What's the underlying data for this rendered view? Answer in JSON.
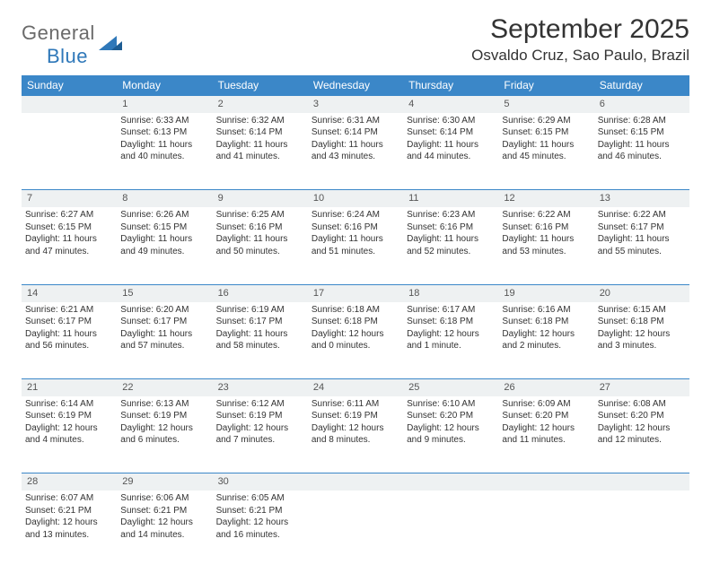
{
  "logo": {
    "top": "General",
    "bottom": "Blue"
  },
  "title": "September 2025",
  "location": "Osvaldo Cruz, Sao Paulo, Brazil",
  "colors": {
    "header_bg": "#3b87c8",
    "header_text": "#ffffff",
    "daynum_bg": "#eef1f2",
    "daynum_border": "#3b87c8",
    "logo_gray": "#6a6a6a",
    "logo_blue": "#2f78b9",
    "body_text": "#333333",
    "page_bg": "#ffffff"
  },
  "weekdays": [
    "Sunday",
    "Monday",
    "Tuesday",
    "Wednesday",
    "Thursday",
    "Friday",
    "Saturday"
  ],
  "weeks": [
    {
      "nums": [
        "",
        "1",
        "2",
        "3",
        "4",
        "5",
        "6"
      ],
      "cells": [
        [],
        [
          "Sunrise: 6:33 AM",
          "Sunset: 6:13 PM",
          "Daylight: 11 hours",
          "and 40 minutes."
        ],
        [
          "Sunrise: 6:32 AM",
          "Sunset: 6:14 PM",
          "Daylight: 11 hours",
          "and 41 minutes."
        ],
        [
          "Sunrise: 6:31 AM",
          "Sunset: 6:14 PM",
          "Daylight: 11 hours",
          "and 43 minutes."
        ],
        [
          "Sunrise: 6:30 AM",
          "Sunset: 6:14 PM",
          "Daylight: 11 hours",
          "and 44 minutes."
        ],
        [
          "Sunrise: 6:29 AM",
          "Sunset: 6:15 PM",
          "Daylight: 11 hours",
          "and 45 minutes."
        ],
        [
          "Sunrise: 6:28 AM",
          "Sunset: 6:15 PM",
          "Daylight: 11 hours",
          "and 46 minutes."
        ]
      ]
    },
    {
      "nums": [
        "7",
        "8",
        "9",
        "10",
        "11",
        "12",
        "13"
      ],
      "cells": [
        [
          "Sunrise: 6:27 AM",
          "Sunset: 6:15 PM",
          "Daylight: 11 hours",
          "and 47 minutes."
        ],
        [
          "Sunrise: 6:26 AM",
          "Sunset: 6:15 PM",
          "Daylight: 11 hours",
          "and 49 minutes."
        ],
        [
          "Sunrise: 6:25 AM",
          "Sunset: 6:16 PM",
          "Daylight: 11 hours",
          "and 50 minutes."
        ],
        [
          "Sunrise: 6:24 AM",
          "Sunset: 6:16 PM",
          "Daylight: 11 hours",
          "and 51 minutes."
        ],
        [
          "Sunrise: 6:23 AM",
          "Sunset: 6:16 PM",
          "Daylight: 11 hours",
          "and 52 minutes."
        ],
        [
          "Sunrise: 6:22 AM",
          "Sunset: 6:16 PM",
          "Daylight: 11 hours",
          "and 53 minutes."
        ],
        [
          "Sunrise: 6:22 AM",
          "Sunset: 6:17 PM",
          "Daylight: 11 hours",
          "and 55 minutes."
        ]
      ]
    },
    {
      "nums": [
        "14",
        "15",
        "16",
        "17",
        "18",
        "19",
        "20"
      ],
      "cells": [
        [
          "Sunrise: 6:21 AM",
          "Sunset: 6:17 PM",
          "Daylight: 11 hours",
          "and 56 minutes."
        ],
        [
          "Sunrise: 6:20 AM",
          "Sunset: 6:17 PM",
          "Daylight: 11 hours",
          "and 57 minutes."
        ],
        [
          "Sunrise: 6:19 AM",
          "Sunset: 6:17 PM",
          "Daylight: 11 hours",
          "and 58 minutes."
        ],
        [
          "Sunrise: 6:18 AM",
          "Sunset: 6:18 PM",
          "Daylight: 12 hours",
          "and 0 minutes."
        ],
        [
          "Sunrise: 6:17 AM",
          "Sunset: 6:18 PM",
          "Daylight: 12 hours",
          "and 1 minute."
        ],
        [
          "Sunrise: 6:16 AM",
          "Sunset: 6:18 PM",
          "Daylight: 12 hours",
          "and 2 minutes."
        ],
        [
          "Sunrise: 6:15 AM",
          "Sunset: 6:18 PM",
          "Daylight: 12 hours",
          "and 3 minutes."
        ]
      ]
    },
    {
      "nums": [
        "21",
        "22",
        "23",
        "24",
        "25",
        "26",
        "27"
      ],
      "cells": [
        [
          "Sunrise: 6:14 AM",
          "Sunset: 6:19 PM",
          "Daylight: 12 hours",
          "and 4 minutes."
        ],
        [
          "Sunrise: 6:13 AM",
          "Sunset: 6:19 PM",
          "Daylight: 12 hours",
          "and 6 minutes."
        ],
        [
          "Sunrise: 6:12 AM",
          "Sunset: 6:19 PM",
          "Daylight: 12 hours",
          "and 7 minutes."
        ],
        [
          "Sunrise: 6:11 AM",
          "Sunset: 6:19 PM",
          "Daylight: 12 hours",
          "and 8 minutes."
        ],
        [
          "Sunrise: 6:10 AM",
          "Sunset: 6:20 PM",
          "Daylight: 12 hours",
          "and 9 minutes."
        ],
        [
          "Sunrise: 6:09 AM",
          "Sunset: 6:20 PM",
          "Daylight: 12 hours",
          "and 11 minutes."
        ],
        [
          "Sunrise: 6:08 AM",
          "Sunset: 6:20 PM",
          "Daylight: 12 hours",
          "and 12 minutes."
        ]
      ]
    },
    {
      "nums": [
        "28",
        "29",
        "30",
        "",
        "",
        "",
        ""
      ],
      "cells": [
        [
          "Sunrise: 6:07 AM",
          "Sunset: 6:21 PM",
          "Daylight: 12 hours",
          "and 13 minutes."
        ],
        [
          "Sunrise: 6:06 AM",
          "Sunset: 6:21 PM",
          "Daylight: 12 hours",
          "and 14 minutes."
        ],
        [
          "Sunrise: 6:05 AM",
          "Sunset: 6:21 PM",
          "Daylight: 12 hours",
          "and 16 minutes."
        ],
        [],
        [],
        [],
        []
      ]
    }
  ]
}
